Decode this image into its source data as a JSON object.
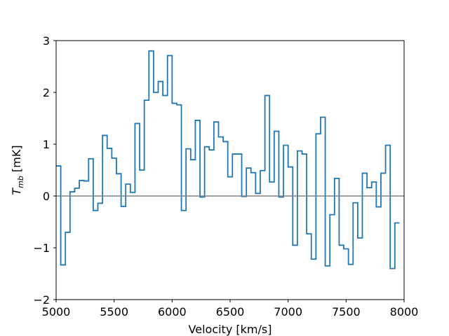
{
  "chart_data": {
    "type": "line",
    "style": "step",
    "title": "",
    "xlabel": "Velocity [km/s]",
    "ylabel": "T_mb [mK]",
    "xlim": [
      5000,
      8000
    ],
    "ylim": [
      -2,
      3
    ],
    "xticks": [
      "5000",
      "5500",
      "6000",
      "6500",
      "7000",
      "7500",
      "8000"
    ],
    "yticks": [
      "−2",
      "−1",
      "0",
      "1",
      "2",
      "3"
    ],
    "grid": false,
    "baseline": 0,
    "colors": {
      "series": "#1f77b4",
      "baseline": "#808080"
    },
    "series": [
      {
        "x": [
          5000,
          5040,
          5080,
          5120,
          5160,
          5200,
          5240,
          5280,
          5320,
          5360,
          5400,
          5440,
          5480,
          5520,
          5560,
          5600,
          5640,
          5680,
          5720,
          5760,
          5800,
          5840,
          5880,
          5920,
          5960,
          6000,
          6040,
          6080,
          6120,
          6160,
          6200,
          6240,
          6280,
          6320,
          6360,
          6400,
          6440,
          6480,
          6520,
          6560,
          6600,
          6640,
          6680,
          6720,
          6760,
          6800,
          6840,
          6880,
          6920,
          6960,
          7000,
          7040,
          7080,
          7120,
          7160,
          7200,
          7240,
          7280,
          7320,
          7360,
          7400,
          7440,
          7480,
          7520,
          7560,
          7600,
          7640,
          7680,
          7720,
          7760,
          7800,
          7840,
          7880,
          7920,
          7960
        ],
        "y": [
          0.58,
          -1.33,
          -0.7,
          0.08,
          0.15,
          0.3,
          0.29,
          0.72,
          -0.28,
          -0.14,
          1.17,
          0.92,
          0.73,
          0.43,
          -0.2,
          0.23,
          0.07,
          1.4,
          0.5,
          1.85,
          2.8,
          2.0,
          2.21,
          1.94,
          2.71,
          1.79,
          1.76,
          -0.28,
          0.91,
          0.7,
          1.46,
          -0.02,
          0.95,
          0.89,
          1.43,
          1.14,
          1.05,
          0.37,
          0.81,
          0.81,
          -0.01,
          0.54,
          0.45,
          0.05,
          0.49,
          1.94,
          0.27,
          1.25,
          -0.02,
          0.98,
          0.56,
          -0.95,
          0.87,
          0.81,
          -0.73,
          -1.22,
          1.2,
          1.52,
          -1.35,
          -0.36,
          0.34,
          -0.95,
          -1.02,
          -1.32,
          -0.13,
          -0.81,
          0.44,
          0.16,
          0.27,
          -0.21,
          0.44,
          0.98,
          -1.4,
          -0.52,
          -0.52
        ]
      }
    ]
  }
}
